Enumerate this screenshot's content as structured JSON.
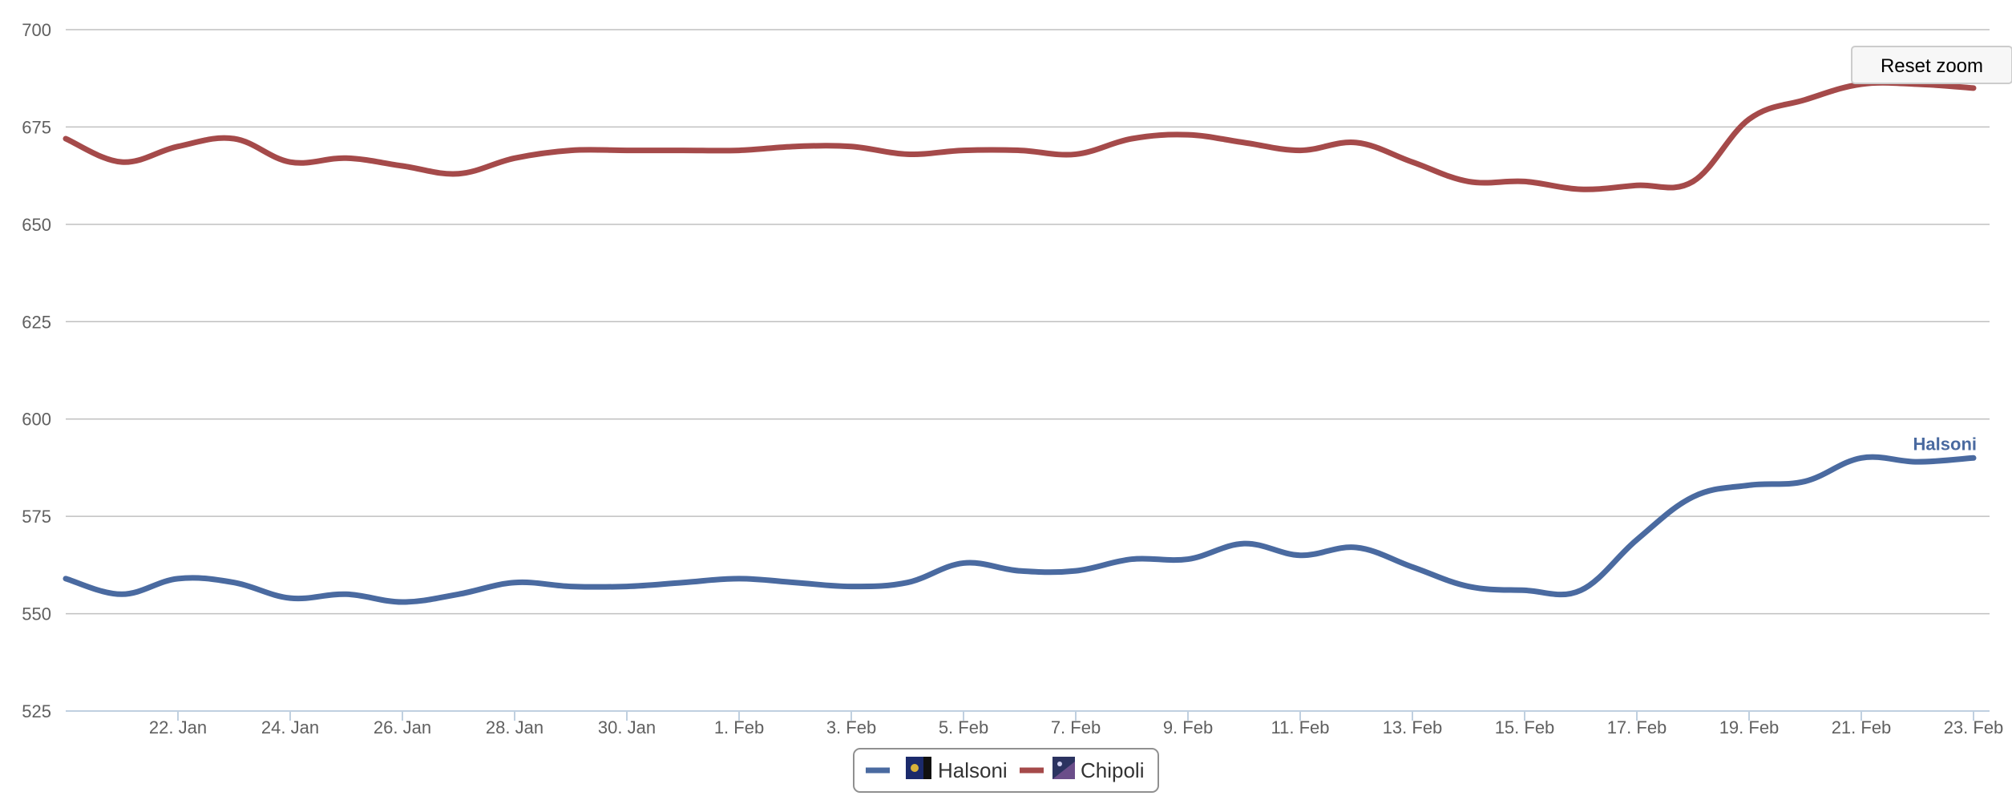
{
  "chart_data": {
    "type": "line",
    "title": "",
    "xlabel": "",
    "ylabel": "",
    "ylim": [
      525,
      700
    ],
    "y_ticks": [
      "525",
      "550",
      "575",
      "600",
      "625",
      "650",
      "675",
      "700"
    ],
    "x_tick_labels": [
      "22. Jan",
      "24. Jan",
      "26. Jan",
      "28. Jan",
      "30. Jan",
      "1. Feb",
      "3. Feb",
      "5. Feb",
      "7. Feb",
      "9. Feb",
      "11. Feb",
      "13. Feb",
      "15. Feb",
      "17. Feb",
      "19. Feb",
      "21. Feb",
      "23. Feb"
    ],
    "x": [
      "20. Jan",
      "21. Jan",
      "22. Jan",
      "23. Jan",
      "24. Jan",
      "25. Jan",
      "26. Jan",
      "27. Jan",
      "28. Jan",
      "29. Jan",
      "30. Jan",
      "31. Jan",
      "1. Feb",
      "2. Feb",
      "3. Feb",
      "4. Feb",
      "5. Feb",
      "6. Feb",
      "7. Feb",
      "8. Feb",
      "9. Feb",
      "10. Feb",
      "11. Feb",
      "12. Feb",
      "13. Feb",
      "14. Feb",
      "15. Feb",
      "16. Feb",
      "17. Feb",
      "18. Feb",
      "19. Feb",
      "20. Feb",
      "21. Feb",
      "22. Feb",
      "23. Feb"
    ],
    "grid": true,
    "legend_position": "bottom-center",
    "series": [
      {
        "name": "Halsoni",
        "color": "#4a6aa0",
        "values": [
          559,
          555,
          559,
          558,
          554,
          555,
          553,
          555,
          558,
          557,
          557,
          558,
          559,
          558,
          557,
          558,
          563,
          561,
          561,
          564,
          564,
          568,
          565,
          567,
          562,
          557,
          556,
          556,
          569,
          580,
          583,
          584,
          590,
          589,
          590
        ]
      },
      {
        "name": "Chipoli",
        "color": "#a54a4a",
        "values": [
          672,
          666,
          670,
          672,
          666,
          667,
          665,
          663,
          667,
          669,
          669,
          669,
          669,
          670,
          670,
          668,
          669,
          669,
          668,
          672,
          673,
          671,
          669,
          671,
          666,
          661,
          661,
          659,
          660,
          661,
          677,
          682,
          686,
          686,
          685
        ]
      }
    ]
  },
  "reset_zoom_label": "Reset zoom",
  "colors": {
    "grid": "#c0c0c0",
    "axis": "#c0d0e0",
    "legend_border": "#909090"
  }
}
